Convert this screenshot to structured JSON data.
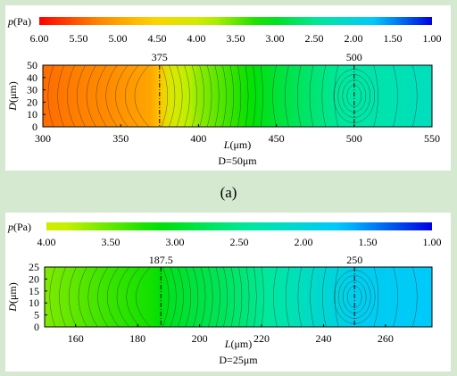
{
  "caption": "(a)",
  "colors": {
    "colormap": [
      "#ff0000",
      "#ff8000",
      "#ffd200",
      "#c8f000",
      "#00e000",
      "#00e8a0",
      "#00c8ff",
      "#0000e0"
    ],
    "contour_line": "#333333",
    "marker_line": "#000000",
    "page_background": "#d5e8d0",
    "panel_background": "#ffffff"
  },
  "chart_data": [
    {
      "type": "heatmap",
      "panel": "a",
      "colorbar": {
        "label_prefix": "p",
        "label_suffix": "(Pa)",
        "tick_labels": [
          "6.00",
          "5.50",
          "5.00",
          "4.50",
          "4.00",
          "3.50",
          "3.00",
          "2.50",
          "2.00",
          "1.50",
          "1.00"
        ],
        "range": [
          6.0,
          1.0
        ]
      },
      "xlabel_prefix": "L",
      "xlabel_suffix": "(μm)",
      "ylabel_prefix": "D",
      "ylabel_suffix": "(μm)",
      "xlim": [
        300,
        550
      ],
      "ylim": [
        0,
        50
      ],
      "xticks": [
        "300",
        "350",
        "400",
        "450",
        "500",
        "550"
      ],
      "yticks": [
        "0",
        "10",
        "20",
        "30",
        "40",
        "50"
      ],
      "markers": [
        {
          "x": 375,
          "label": "375"
        },
        {
          "x": 500,
          "label": "500"
        }
      ],
      "subtitle": "D=50μm",
      "pressure_profile": {
        "x": [
          300,
          340,
          370,
          375,
          378,
          400,
          450,
          490,
          500,
          550
        ],
        "p": [
          5.4,
          5.2,
          4.95,
          4.7,
          4.2,
          3.65,
          2.9,
          2.45,
          2.4,
          2.2
        ]
      }
    },
    {
      "type": "heatmap",
      "panel": "b",
      "colorbar": {
        "label_prefix": "p",
        "label_suffix": "(Pa)",
        "tick_labels": [
          "4.00",
          "3.50",
          "3.00",
          "2.50",
          "2.00",
          "1.50",
          "1.00"
        ],
        "range": [
          4.0,
          1.0
        ]
      },
      "xlabel_prefix": "L",
      "xlabel_suffix": "(μm)",
      "ylabel_prefix": "D",
      "ylabel_suffix": "(μm)",
      "xlim": [
        150,
        275
      ],
      "ylim": [
        0,
        25
      ],
      "xticks": [
        "160",
        "180",
        "200",
        "220",
        "240",
        "260"
      ],
      "yticks": [
        "0",
        "5",
        "10",
        "15",
        "20",
        "25"
      ],
      "markers": [
        {
          "x": 187.5,
          "label": "187.5"
        },
        {
          "x": 250,
          "label": "250"
        }
      ],
      "subtitle": "D=25μm",
      "pressure_profile": {
        "x": [
          150,
          170,
          185,
          187.5,
          190,
          210,
          240,
          250,
          260,
          275
        ],
        "p": [
          3.6,
          3.35,
          3.2,
          3.1,
          3.0,
          2.7,
          2.05,
          1.85,
          1.8,
          1.75
        ]
      }
    }
  ]
}
